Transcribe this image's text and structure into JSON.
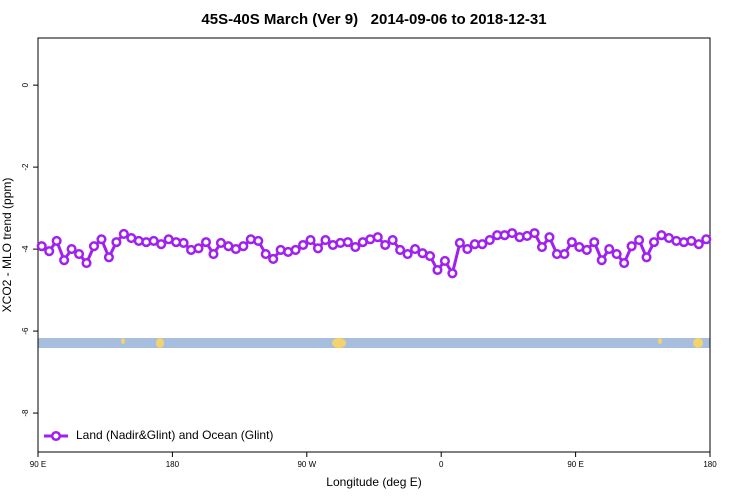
{
  "chart_data": {
    "type": "line",
    "title": "45S-40S March (Ver 9)   2014-09-06 to 2018-12-31",
    "x_label": "Longitude (deg E)",
    "y_label": "XCO2 - MLO trend (ppm)",
    "xlim": [
      90,
      540
    ],
    "xticks": [
      {
        "value": 90,
        "label": "90 E"
      },
      180,
      {
        "value": 270,
        "label": "90 W"
      },
      {
        "value": 360,
        "label": "0"
      },
      {
        "value": 450,
        "label": "90 E"
      },
      {
        "value": 540,
        "label": "180"
      }
    ],
    "ylim": [
      -8.95,
      1.15
    ],
    "yticks": [
      0,
      -2,
      -4,
      -6,
      -8
    ],
    "legend": "bottom-left",
    "x": [
      92.5,
      97.5,
      102.5,
      107.5,
      112.5,
      117.5,
      122.5,
      127.5,
      132.5,
      137.5,
      142.5,
      147.5,
      152.5,
      157.5,
      162.5,
      167.5,
      172.5,
      177.5,
      182.5,
      187.5,
      192.5,
      197.5,
      202.5,
      207.5,
      212.5,
      217.5,
      222.5,
      227.5,
      232.5,
      237.5,
      242.5,
      247.5,
      252.5,
      257.5,
      262.5,
      267.5,
      272.5,
      277.5,
      282.5,
      287.5,
      292.5,
      297.5,
      302.5,
      307.5,
      312.5,
      317.5,
      322.5,
      327.5,
      332.5,
      337.5,
      342.5,
      347.5,
      352.5,
      357.5,
      362.5,
      367.5,
      372.5,
      377.5,
      382.5,
      387.5,
      392.5,
      397.5,
      402.5,
      407.5,
      412.5,
      417.5,
      422.5,
      427.5,
      432.5,
      437.5,
      442.5,
      447.5,
      452.5,
      457.5,
      462.5,
      467.5,
      472.5,
      477.5,
      482.5,
      487.5,
      492.5,
      497.5,
      502.5,
      507.5,
      512.5,
      517.5,
      522.5,
      527.5,
      532.5,
      537.5
    ],
    "series": [
      {
        "name": "Land (Nadir&Glint) and Ocean (Glint)",
        "color": "#a020f0",
        "values": [
          -3.93,
          -4.05,
          -3.8,
          -4.27,
          -4.0,
          -4.12,
          -4.34,
          -3.93,
          -3.76,
          -4.2,
          -3.83,
          -3.63,
          -3.73,
          -3.8,
          -3.83,
          -3.8,
          -3.88,
          -3.76,
          -3.83,
          -3.85,
          -4.02,
          -3.98,
          -3.83,
          -4.12,
          -3.85,
          -3.93,
          -4.0,
          -3.93,
          -3.76,
          -3.8,
          -4.12,
          -4.24,
          -4.02,
          -4.07,
          -4.02,
          -3.9,
          -3.78,
          -3.98,
          -3.78,
          -3.9,
          -3.85,
          -3.83,
          -3.95,
          -3.83,
          -3.76,
          -3.71,
          -3.9,
          -3.78,
          -4.02,
          -4.12,
          -4.0,
          -4.1,
          -4.17,
          -4.51,
          -4.29,
          -4.59,
          -3.85,
          -4.0,
          -3.88,
          -3.88,
          -3.78,
          -3.66,
          -3.66,
          -3.61,
          -3.71,
          -3.68,
          -3.61,
          -3.95,
          -3.71,
          -4.12,
          -4.12,
          -3.83,
          -3.95,
          -4.02,
          -3.83,
          -4.27,
          -4.0,
          -4.12,
          -4.34,
          -3.93,
          -3.78,
          -4.2,
          -3.83,
          -3.66,
          -3.73,
          -3.8,
          -3.83,
          -3.8,
          -3.88,
          -3.76
        ]
      }
    ]
  }
}
